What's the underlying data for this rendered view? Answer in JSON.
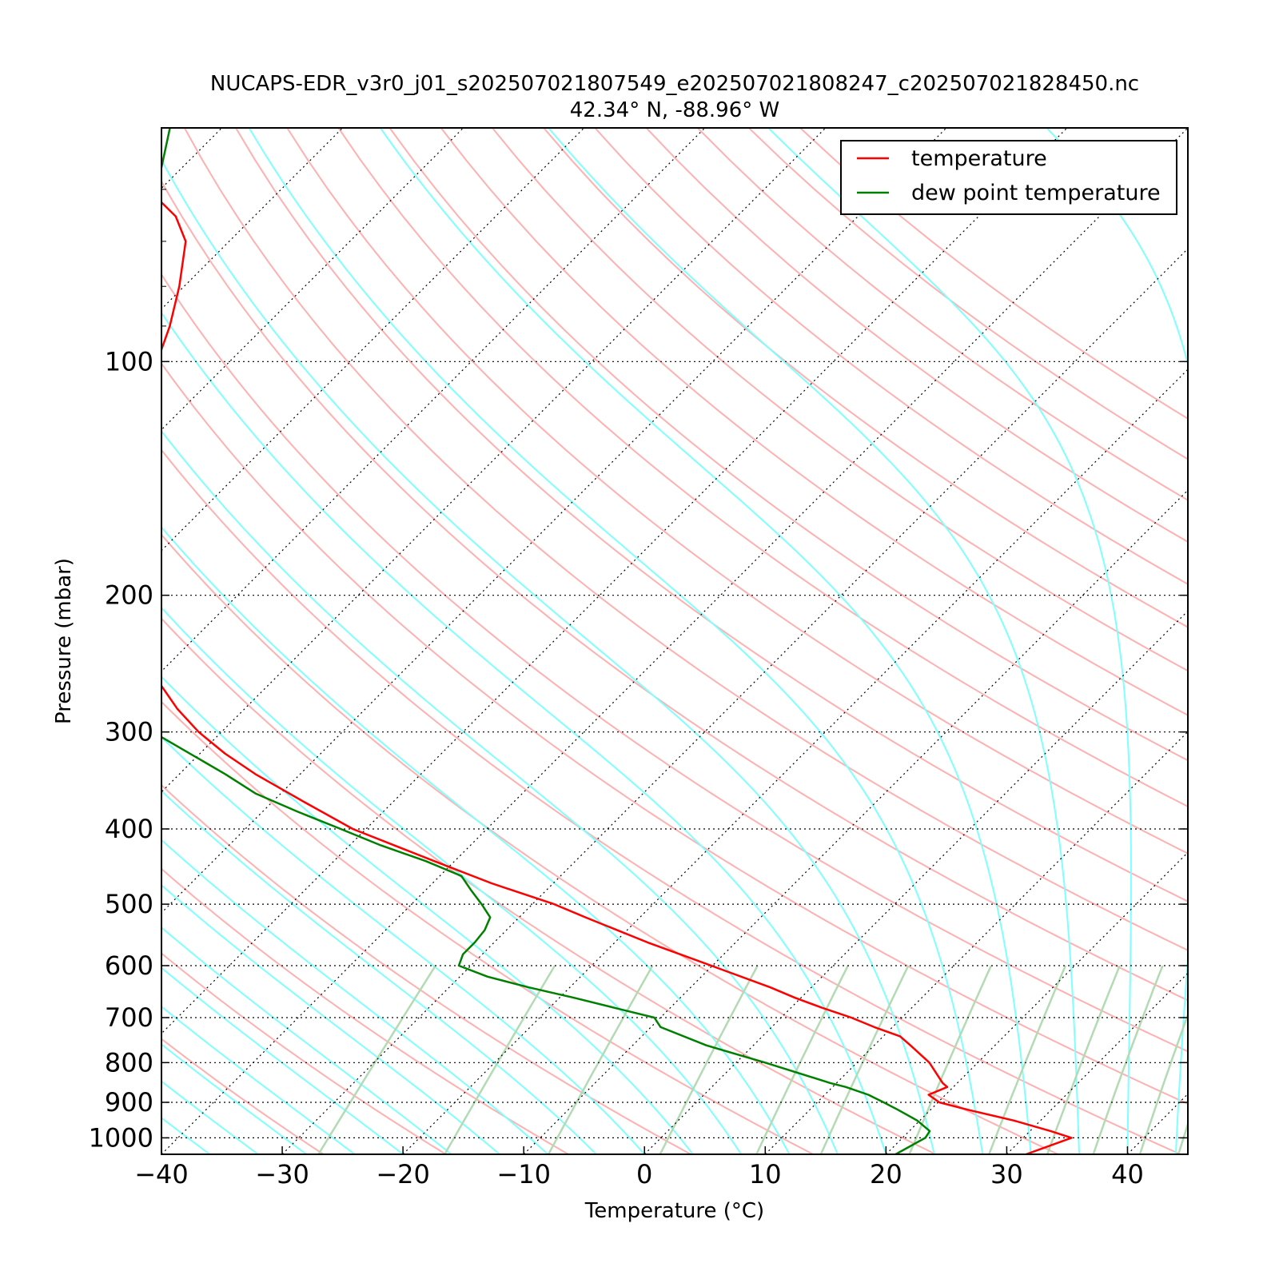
{
  "chart_data": {
    "type": "line",
    "title_line1": "NUCAPS-EDR_v3r0_j01_s202507021807549_e202507021808247_c202507021828450.nc",
    "title_line2": "42.34° N, -88.96° W",
    "xlabel": "Temperature (°C)",
    "ylabel": "Pressure (mbar)",
    "xlim": [
      -40,
      45
    ],
    "ylim": [
      1050,
      50
    ],
    "y_scale": "log",
    "skew": true,
    "grid": true,
    "x_ticks": [
      -40,
      -30,
      -20,
      -10,
      0,
      10,
      20,
      30,
      40
    ],
    "x_tick_labels": [
      "−40",
      "−30",
      "−20",
      "−10",
      "0",
      "10",
      "20",
      "30",
      "40"
    ],
    "y_ticks": [
      100,
      200,
      300,
      400,
      500,
      600,
      700,
      800,
      900,
      1000
    ],
    "y_tick_labels": [
      "100",
      "200",
      "300",
      "400",
      "500",
      "600",
      "700",
      "800",
      "900",
      "1000"
    ],
    "legend_position": "top-right",
    "series": [
      {
        "name": "temperature",
        "color": "#ff0000",
        "p": [
          1050,
          1000,
          980,
          950,
          920,
          900,
          880,
          860,
          850,
          800,
          760,
          740,
          720,
          700,
          680,
          660,
          640,
          600,
          560,
          520,
          500,
          470,
          440,
          400,
          370,
          340,
          320,
          300,
          280,
          260,
          240,
          220,
          200,
          180,
          160,
          140,
          120,
          110,
          100,
          90,
          80,
          70,
          65,
          60,
          55,
          50
        ],
        "values": [
          31.6,
          34.0,
          31.7,
          27.8,
          23.1,
          20.1,
          18.6,
          19.5,
          18.8,
          16.0,
          13.0,
          11.4,
          8.5,
          5.8,
          2.6,
          -0.5,
          -3.4,
          -10.1,
          -17.3,
          -24.5,
          -28.2,
          -35.1,
          -41.7,
          -51.1,
          -57.2,
          -63.7,
          -67.9,
          -71.9,
          -75.6,
          -79.1,
          -82.6,
          -86.1,
          -89.4,
          -92.9,
          -96.9,
          -101.0,
          -103.0,
          -104.0,
          -106.0,
          -107.9,
          -110.4,
          -113.6,
          -116.5,
          -121.0,
          -124.6,
          -128.3
        ]
      },
      {
        "name": "dew point temperature",
        "color": "#008000",
        "p": [
          1050,
          1000,
          980,
          950,
          920,
          900,
          880,
          860,
          850,
          800,
          760,
          720,
          700,
          680,
          660,
          640,
          620,
          600,
          580,
          560,
          540,
          520,
          500,
          480,
          460,
          440,
          420,
          400,
          380,
          360,
          340,
          320,
          300,
          280,
          260,
          240,
          220,
          200,
          190,
          180,
          170,
          160,
          150,
          140,
          130,
          120,
          110,
          100,
          90,
          80,
          70,
          60,
          50
        ],
        "values": [
          20.8,
          21.9,
          21.7,
          19.8,
          17.3,
          15.5,
          13.6,
          11.1,
          9.5,
          2.4,
          -3.9,
          -9.2,
          -10.5,
          -14.6,
          -18.8,
          -23.4,
          -27.7,
          -31.0,
          -31.6,
          -31.6,
          -31.8,
          -32.4,
          -34.2,
          -36.2,
          -38.2,
          -42.4,
          -47.4,
          -52.1,
          -57.1,
          -62.1,
          -66.2,
          -70.8,
          -75.7,
          -82.4,
          -87.9,
          -93.6,
          -99.2,
          -104.2,
          -106.5,
          -107.8,
          -108.2,
          -108.0,
          -107.8,
          -107.6,
          -107.6,
          -107.6,
          -108.0,
          -109.6,
          -111.4,
          -113.6,
          -116.6,
          -120.3,
          -124.3
        ]
      }
    ],
    "background_lines": {
      "dry_adiabats_color": "#ffb0b0",
      "moist_adiabats_color": "#7fffff",
      "mixing_ratio_color": "#b3dbb3",
      "isotherm_grid_color": "#000000"
    }
  }
}
